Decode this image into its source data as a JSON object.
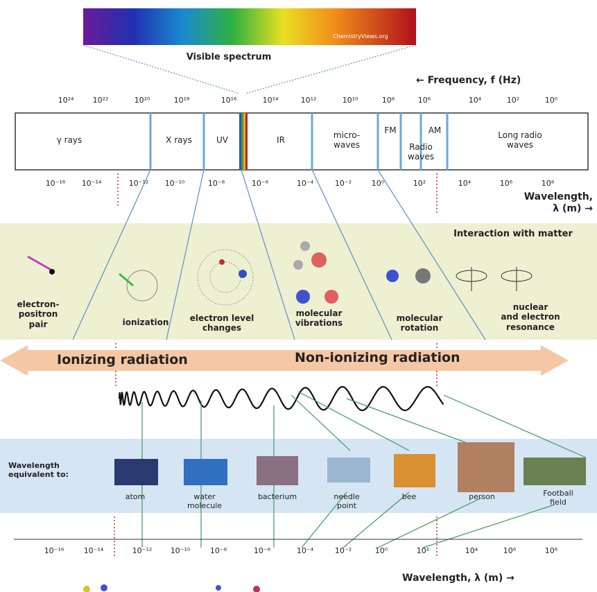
{
  "header": {
    "image_credit": "ChemistryViews.org",
    "visible_spectrum": "Visible spectrum",
    "frequency_label": "← Frequency, f (Hz)"
  },
  "frequency_ticks": [
    "10²⁴",
    "10²²",
    "10²⁰",
    "10¹⁸",
    "10¹⁶",
    "10¹⁴",
    "10¹²",
    "10¹⁰",
    "10⁸",
    "10⁶",
    "10⁴",
    "10²",
    "10⁰"
  ],
  "bands": [
    "γ rays",
    "X rays",
    "UV",
    "IR",
    "micro-\nwaves",
    "FM",
    "Radio\nwaves",
    "AM",
    "Long radio\nwaves"
  ],
  "wavelength_ticks": [
    "10⁻¹⁶",
    "10⁻¹⁴",
    "10⁻¹²",
    "10⁻¹⁰",
    "10⁻⁸",
    "10⁻⁶",
    "10⁻⁴",
    "10⁻²",
    "10⁰",
    "10²",
    "10⁴",
    "10⁶",
    "10⁸"
  ],
  "wavelength_label": "Wavelength,\nλ (m) →",
  "interactions": {
    "title": "Interaction with matter",
    "items": [
      "electron-\npositron\npair",
      "ionization",
      "electron level\nchanges",
      "molecular\nvibrations",
      "molecular\nrotation",
      "nuclear\nand electron\nresonance"
    ]
  },
  "radiation": {
    "ionizing": "Ionizing radiation",
    "non_ionizing": "Non-ionizing radiation"
  },
  "equivalents": {
    "title": "Wavelength\nequivalent to:",
    "items": [
      "atom",
      "water\nmolecule",
      "bacterium",
      "needle\npoint",
      "bee",
      "person",
      "Football\nfield"
    ]
  },
  "scale_ticks": [
    "10⁻¹⁶",
    "10⁻¹⁴",
    "10⁻¹²",
    "10⁻¹⁰",
    "10⁻⁸",
    "10⁻⁶",
    "10⁻⁴",
    "10⁻²",
    "10⁰",
    "10²",
    "10⁴",
    "10⁶",
    "10⁸"
  ],
  "scale_label": "Wavelength, λ (m) →"
}
